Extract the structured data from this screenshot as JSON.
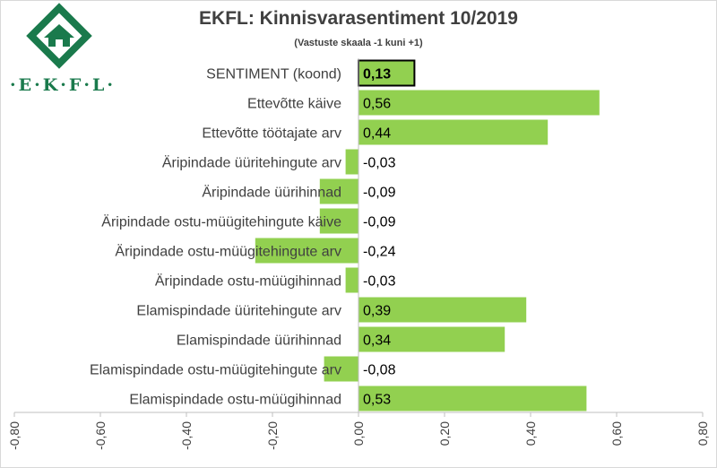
{
  "header": {
    "title": "EKFL: Kinnisvarasentiment 10/2019",
    "subtitle": "(Vastuste skaala -1 kuni +1)"
  },
  "logo": {
    "text": "·E·K·F·L·",
    "icon": "ekfl-logo-house-icon",
    "color": "#1a7a4c"
  },
  "chart_data": {
    "type": "bar",
    "orientation": "horizontal",
    "title": "EKFL: Kinnisvarasentiment 10/2019",
    "subtitle": "(Vastuste skaala -1 kuni +1)",
    "xlim": [
      -0.8,
      0.8
    ],
    "x_ticks": [
      "-0,80",
      "-0,60",
      "-0,40",
      "-0,20",
      "0,00",
      "0,20",
      "0,40",
      "0,60",
      "0,80"
    ],
    "x_tick_values": [
      -0.8,
      -0.6,
      -0.4,
      -0.2,
      0,
      0.2,
      0.4,
      0.6,
      0.8
    ],
    "grid": false,
    "bar_color": "#92d050",
    "highlight_border_color": "#000000",
    "categories": [
      "SENTIMENT (koond)",
      "Ettevõtte käive",
      "Ettevõtte töötajate arv",
      "Äripindade üüritehingute arv",
      "Äripindade üürihinnad",
      "Äripindade ostu-müügitehingute käive",
      "Äripindade ostu-müügitehingute arv",
      "Äripindade ostu-müügihinnad",
      "Elamispindade üüritehingute arv",
      "Elamispindade üürihinnad",
      "Elamispindade ostu-müügitehingute arv",
      "Elamispindade ostu-müügihinnad"
    ],
    "values": [
      0.13,
      0.56,
      0.44,
      -0.03,
      -0.09,
      -0.09,
      -0.24,
      -0.03,
      0.39,
      0.34,
      -0.08,
      0.53
    ],
    "labels": [
      "0,13",
      "0,56",
      "0,44",
      "-0,03",
      "-0,09",
      "-0,09",
      "-0,24",
      "-0,03",
      "0,39",
      "0,34",
      "-0,08",
      "0,53"
    ]
  }
}
